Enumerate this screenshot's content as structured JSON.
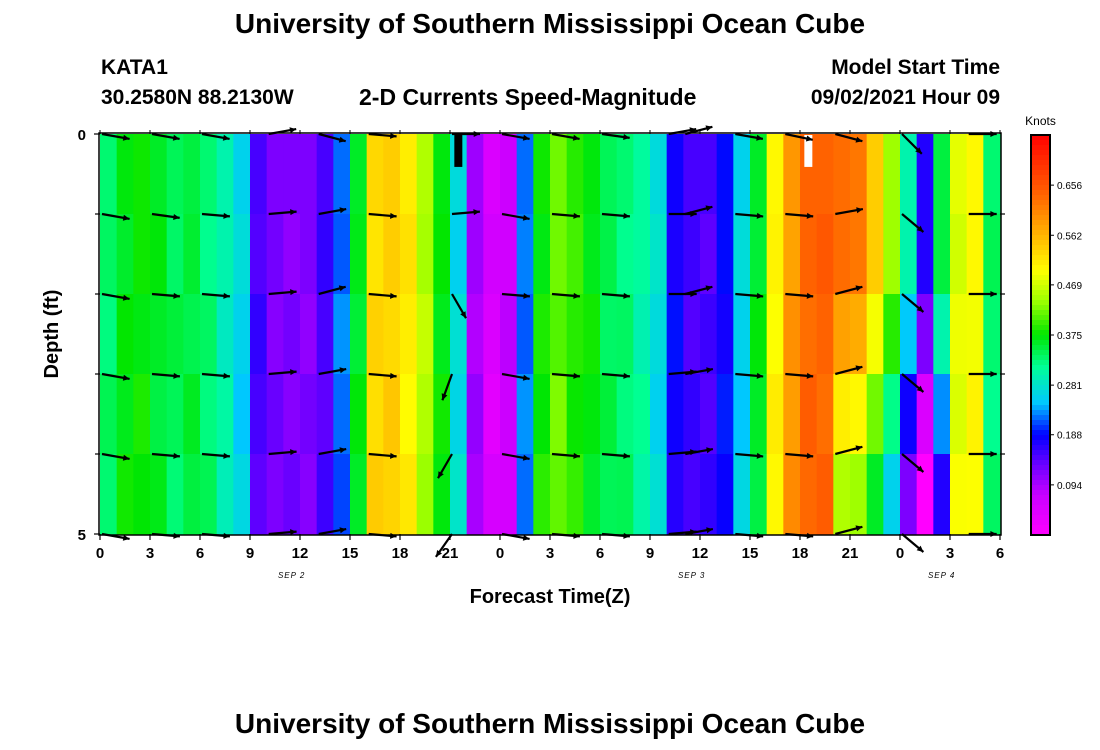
{
  "page": {
    "title_top": "University of Southern Mississippi Ocean Cube",
    "title_bottom": "University of Southern Mississippi Ocean Cube",
    "station_id": "KATA1",
    "station_coords": "30.2580N  88.2130W",
    "plot_title": "2-D Currents Speed-Magnitude",
    "model_start_label": "Model Start Time",
    "model_start_value": "09/02/2021 Hour 09"
  },
  "chart_data": {
    "type": "heatmap",
    "title": "2-D Currents Speed-Magnitude",
    "xlabel": "Forecast Time(Z)",
    "ylabel": "Depth (ft)",
    "x_tick_labels": [
      "0",
      "3",
      "6",
      "9",
      "12",
      "15",
      "18",
      "21",
      "0",
      "3",
      "6",
      "9",
      "12",
      "15",
      "18",
      "21",
      "0",
      "3",
      "6"
    ],
    "y_tick_labels": [
      "0",
      "5"
    ],
    "ylim": [
      0,
      5
    ],
    "hours": 54,
    "depth_rows": 5,
    "date_labels": [
      {
        "text": "SEP 2",
        "hour": 11
      },
      {
        "text": "SEP 3",
        "hour": 35
      },
      {
        "text": "SEP 4",
        "hour": 50
      }
    ],
    "colorbar": {
      "label": "Knots",
      "min": 0,
      "max": 0.75,
      "tick_labels": [
        "0.656",
        "0.562",
        "0.469",
        "0.375",
        "0.281",
        "0.188",
        "0.094"
      ],
      "tick_values": [
        0.656,
        0.562,
        0.469,
        0.375,
        0.281,
        0.188,
        0.094
      ]
    },
    "speed_profile_knots": [
      0.33,
      0.37,
      0.38,
      0.36,
      0.34,
      0.35,
      0.33,
      0.3,
      0.26,
      0.15,
      0.12,
      0.12,
      0.12,
      0.15,
      0.22,
      0.36,
      0.53,
      0.54,
      0.51,
      0.45,
      0.37,
      0.27,
      0.1,
      0.05,
      0.07,
      0.22,
      0.38,
      0.42,
      0.39,
      0.37,
      0.34,
      0.33,
      0.31,
      0.27,
      0.18,
      0.15,
      0.15,
      0.19,
      0.26,
      0.36,
      0.5,
      0.59,
      0.64,
      0.64,
      0.63,
      0.62,
      0.54,
      0.44,
      0.3,
      0.17,
      0.35,
      0.48,
      0.5,
      0.33
    ],
    "depth_offsets": [
      [
        0,
        0.03,
        0,
        -0.01,
        -0.02
      ],
      [
        0,
        0.02,
        0,
        0,
        0,
        0.02
      ],
      [
        0,
        -0.05,
        -0.12,
        -0.18,
        -0.22
      ],
      [
        0,
        -0.05,
        -0.08,
        -0.1,
        -0.12
      ]
    ],
    "offset_hours": [
      44,
      45,
      46,
      47,
      48,
      49,
      50
    ],
    "arrow_hours": [
      0,
      3,
      6,
      10,
      13,
      16,
      21,
      24,
      27,
      30,
      34,
      35,
      38,
      41,
      44,
      48,
      52
    ],
    "arrow_depth_rows": [
      0,
      1,
      2,
      3,
      4,
      5
    ],
    "arrow_directions_deg": [
      [
        10,
        10,
        10,
        350,
        15,
        5,
        0,
        10,
        10,
        8,
        350,
        345,
        10,
        12,
        15,
        45,
        0
      ],
      [
        10,
        8,
        5,
        355,
        350,
        5,
        355,
        10,
        5,
        5,
        0,
        345,
        5,
        5,
        350,
        40,
        0
      ],
      [
        10,
        5,
        5,
        355,
        345,
        5,
        60,
        5,
        5,
        5,
        0,
        345,
        5,
        5,
        345,
        40,
        0
      ],
      [
        10,
        5,
        5,
        355,
        350,
        5,
        110,
        10,
        5,
        5,
        355,
        350,
        5,
        5,
        345,
        40,
        0
      ],
      [
        10,
        5,
        5,
        355,
        350,
        5,
        120,
        10,
        5,
        5,
        355,
        350,
        5,
        5,
        345,
        40,
        0
      ],
      [
        10,
        5,
        5,
        355,
        350,
        5,
        125,
        10,
        5,
        5,
        355,
        350,
        5,
        5,
        345,
        40,
        0
      ]
    ],
    "markers": [
      {
        "hour": 21,
        "depth": 0.3,
        "color": "#000000"
      },
      {
        "hour": 42,
        "depth": 0.3,
        "color": "#ffffff"
      }
    ]
  }
}
